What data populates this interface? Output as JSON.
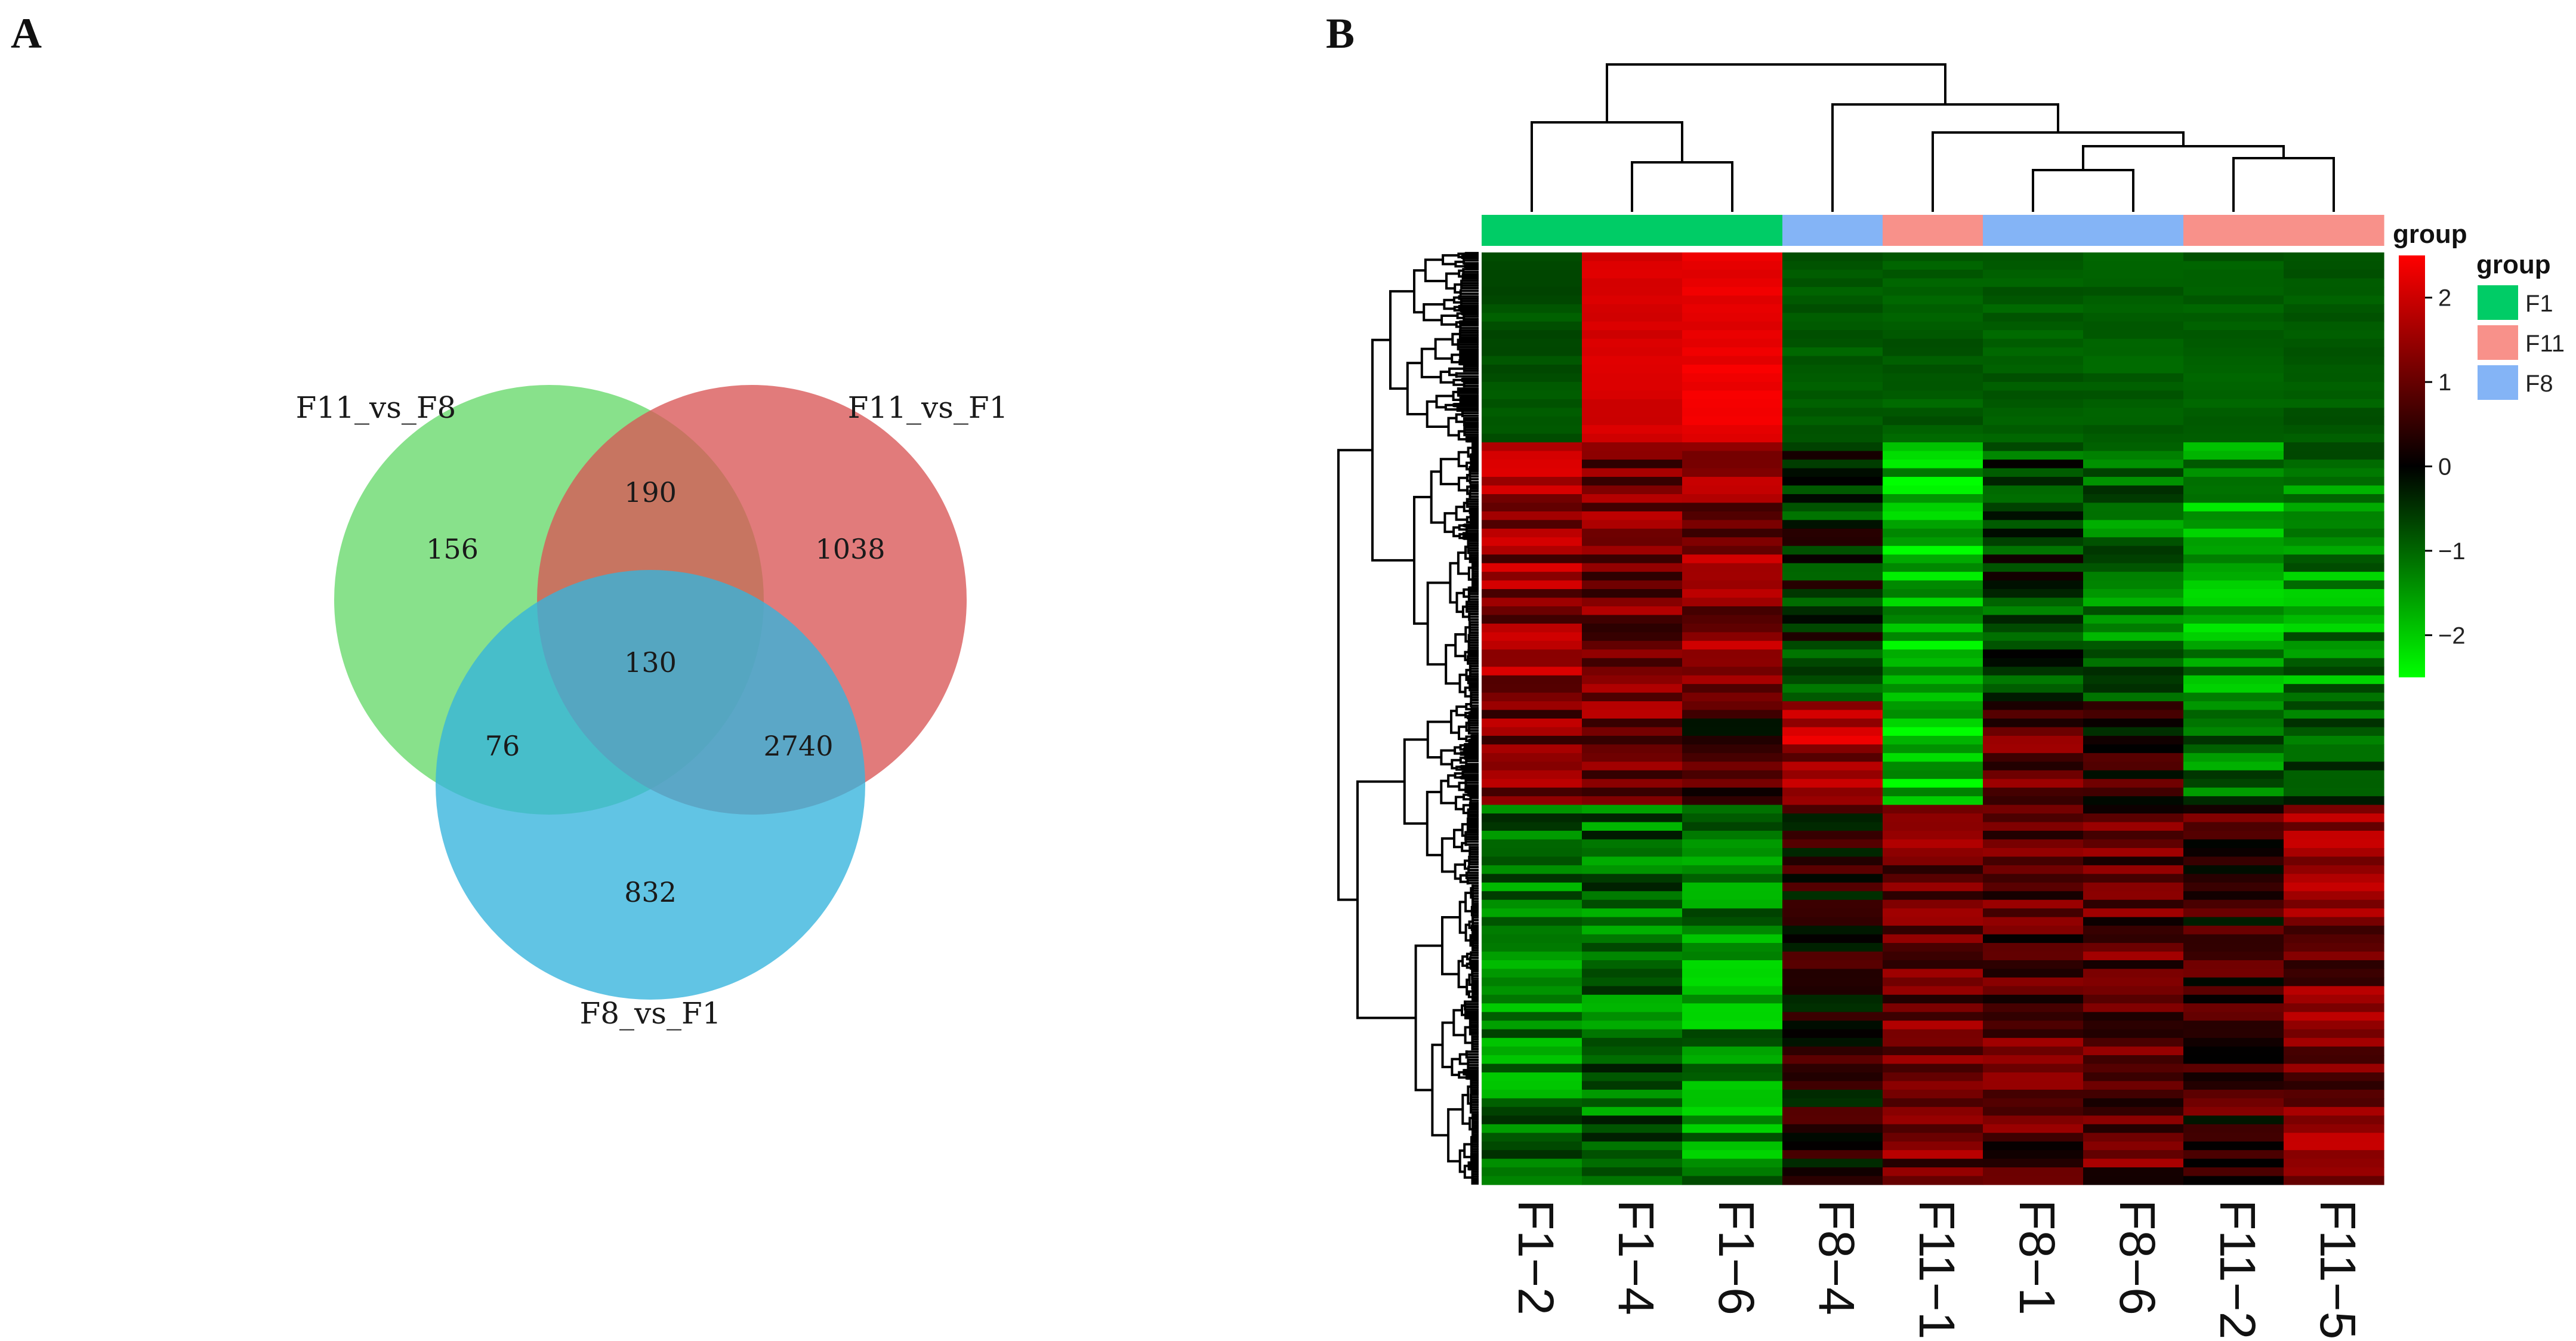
{
  "figure": {
    "panel_a_label": "A",
    "panel_b_label": "B"
  },
  "chart_data": [
    {
      "type": "venn",
      "sets": [
        {
          "name": "F11_vs_F8",
          "color": "#66d96a"
        },
        {
          "name": "F11_vs_F1",
          "color": "#d85656"
        },
        {
          "name": "F8_vs_F1",
          "color": "#35b3dd"
        }
      ],
      "regions": [
        {
          "sets": [
            "F11_vs_F8"
          ],
          "value": 156
        },
        {
          "sets": [
            "F11_vs_F1"
          ],
          "value": 1038
        },
        {
          "sets": [
            "F8_vs_F1"
          ],
          "value": 832
        },
        {
          "sets": [
            "F11_vs_F8",
            "F11_vs_F1"
          ],
          "value": 190
        },
        {
          "sets": [
            "F11_vs_F8",
            "F8_vs_F1"
          ],
          "value": 76
        },
        {
          "sets": [
            "F11_vs_F1",
            "F8_vs_F1"
          ],
          "value": 2740
        },
        {
          "sets": [
            "F11_vs_F8",
            "F11_vs_F1",
            "F8_vs_F1"
          ],
          "value": 130
        }
      ]
    },
    {
      "type": "heatmap",
      "columns": [
        "F1−2",
        "F1−4",
        "F1−6",
        "F8−4",
        "F11−1",
        "F8−1",
        "F8−6",
        "F11−2",
        "F11−5"
      ],
      "column_groups": [
        "F1",
        "F1",
        "F1",
        "F8",
        "F11",
        "F8",
        "F8",
        "F11",
        "F11"
      ],
      "annotation_title": "group",
      "legend": {
        "title": "group",
        "entries": [
          {
            "label": "F1",
            "color": "#00cc66"
          },
          {
            "label": "F11",
            "color": "#f8918a"
          },
          {
            "label": "F8",
            "color": "#84b4f6"
          }
        ]
      },
      "color_scale": {
        "ticks": [
          2,
          1,
          0,
          -1,
          -2
        ],
        "tick_labels": [
          "2",
          "1",
          "0",
          "−1",
          "−2"
        ],
        "min": -2.5,
        "max": 2.5,
        "low_color": "#00ff00",
        "mid_color": "#000000",
        "high_color": "#ff0000"
      },
      "row_blocks": [
        {
          "rows": 22,
          "values": [
            -0.8,
            2.1,
            2.3,
            -0.9,
            -0.9,
            -0.9,
            -0.9,
            -0.9,
            -0.9
          ]
        },
        {
          "rows": 30,
          "values": [
            1.4,
            1.2,
            1.3,
            -0.4,
            -1.8,
            -0.6,
            -1.1,
            -1.6,
            -1.4
          ]
        },
        {
          "rows": 12,
          "values": [
            1.2,
            1.1,
            0.6,
            1.6,
            -1.9,
            0.9,
            0.3,
            -1.1,
            -0.6
          ]
        },
        {
          "rows": 44,
          "values": [
            -1.2,
            -1.0,
            -1.4,
            0.2,
            1.1,
            0.8,
            0.9,
            0.5,
            1.2
          ]
        }
      ],
      "row_noise": 0.5
    }
  ]
}
